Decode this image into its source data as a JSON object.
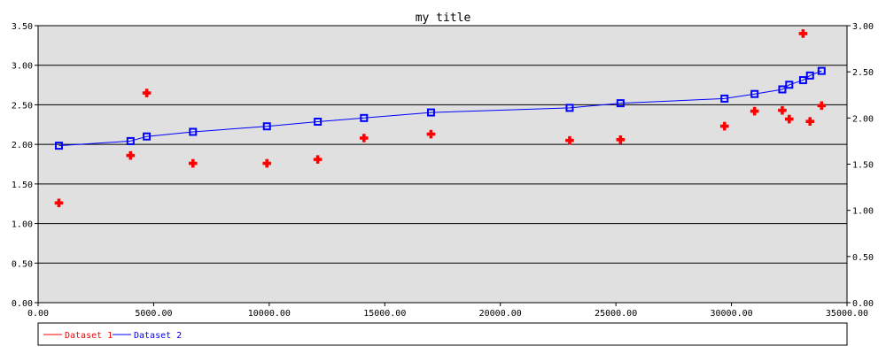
{
  "chart_data": {
    "type": "scatter",
    "title": "my title",
    "xlabel": "",
    "ylabel": "",
    "xlim": [
      0,
      35000
    ],
    "ylim": [
      0,
      3.5
    ],
    "y2lim": [
      0,
      3.0
    ],
    "x_ticks": [
      "0.00",
      "5000.00",
      "10000.00",
      "15000.00",
      "20000.00",
      "25000.00",
      "30000.00",
      "35000.00"
    ],
    "y_ticks": [
      "0.00",
      "0.50",
      "1.00",
      "1.50",
      "2.00",
      "2.50",
      "3.00",
      "3.50"
    ],
    "y2_ticks": [
      "0.00",
      "0.50",
      "1.00",
      "1.50",
      "2.00",
      "2.50",
      "3.00"
    ],
    "x_tick_values": [
      0,
      5000,
      10000,
      15000,
      20000,
      25000,
      30000,
      35000
    ],
    "y_tick_values": [
      0,
      0.5,
      1.0,
      1.5,
      2.0,
      2.5,
      3.0,
      3.5
    ],
    "y2_tick_values": [
      0,
      0.5,
      1.0,
      1.5,
      2.0,
      2.5,
      3.0
    ],
    "grid": true,
    "legend_position": "bottom",
    "background": "#e0e0e0",
    "series": [
      {
        "name": "Dataset 1",
        "color": "#ff0000",
        "marker": "cross",
        "axis": "left",
        "line": false,
        "x": [
          900,
          4000,
          4700,
          6700,
          9900,
          12100,
          14100,
          17000,
          23000,
          25200,
          29700,
          31000,
          32200,
          32500,
          33100,
          33400,
          33900
        ],
        "y": [
          1.26,
          1.86,
          2.65,
          1.76,
          1.76,
          1.81,
          2.08,
          2.13,
          2.05,
          2.06,
          2.23,
          2.42,
          2.43,
          2.32,
          3.4,
          2.29,
          2.49
        ]
      },
      {
        "name": "Dataset 2",
        "color": "#0000ff",
        "marker": "square",
        "axis": "right",
        "line": true,
        "x": [
          900,
          4000,
          4700,
          6700,
          9900,
          12100,
          14100,
          17000,
          23000,
          25200,
          29700,
          31000,
          32200,
          32500,
          33100,
          33400,
          33900
        ],
        "y": [
          1.7,
          1.75,
          1.8,
          1.85,
          1.91,
          1.96,
          2.0,
          2.06,
          2.11,
          2.16,
          2.21,
          2.26,
          2.31,
          2.36,
          2.41,
          2.46,
          2.51
        ]
      }
    ]
  }
}
